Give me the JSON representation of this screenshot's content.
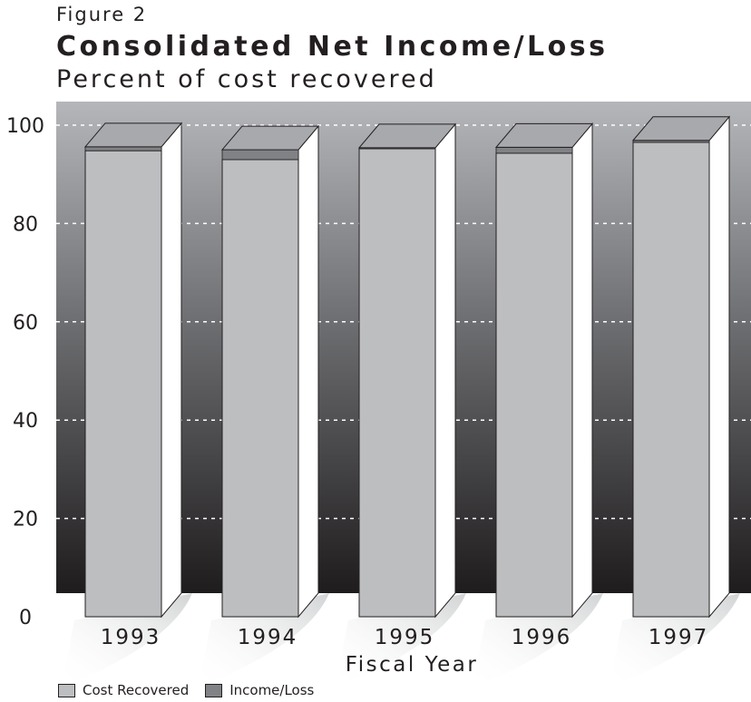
{
  "figure_label": "Figure 2",
  "colors": {
    "cost_recovered": "#bcbec0",
    "income_loss": "#808285",
    "bar_top": "#a7a9ac",
    "bar_side": "#ffffff",
    "outline": "#231f20"
  },
  "chart_data": {
    "type": "bar",
    "title": "Consolidated Net Income/Loss",
    "subtitle": "Percent of cost recovered",
    "xlabel": "Fiscal Year",
    "ylabel": "",
    "categories": [
      "1993",
      "1994",
      "1995",
      "1996",
      "1997"
    ],
    "series": [
      {
        "name": "Cost Recovered",
        "values": [
          94.8,
          93.0,
          95.2,
          94.3,
          96.5
        ]
      },
      {
        "name": "Income/Loss",
        "values": [
          0.8,
          2.0,
          0.2,
          1.2,
          0.4
        ]
      }
    ],
    "yticks": [
      "0",
      "20",
      "40",
      "60",
      "80",
      "100"
    ],
    "ylim": [
      0,
      100
    ],
    "grid": true,
    "stacked": true,
    "legend": "bottom-left"
  }
}
